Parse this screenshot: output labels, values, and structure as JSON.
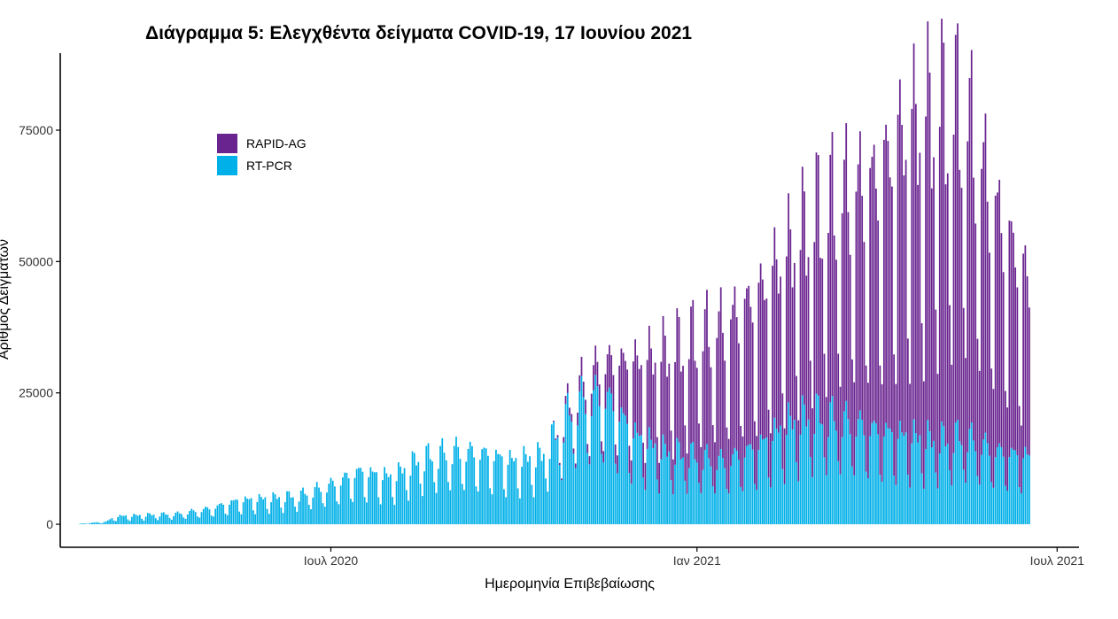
{
  "chart_data": {
    "type": "bar",
    "stacked": true,
    "title": "Διάγραμμα 5: Ελεγχθέντα δείγματα COVID-19, 17 Ιουνίου 2021",
    "xlabel": "Ημερομηνία Επιβεβαίωσης",
    "ylabel": "Αριθμός Δειγμάτων",
    "ylim": [
      0,
      89000
    ],
    "yticks": [
      0,
      25000,
      50000,
      75000
    ],
    "xticks": [
      {
        "date": "2020-07-01",
        "label": "Ιουλ 2020"
      },
      {
        "date": "2021-01-01",
        "label": "Ιαν 2021"
      },
      {
        "date": "2021-07-01",
        "label": "Ιουλ 2021"
      }
    ],
    "xlim": [
      "2020-02-16",
      "2021-07-12"
    ],
    "date_range": [
      "2020-02-26",
      "2021-06-17"
    ],
    "grid": false,
    "legend_position": "top-left",
    "series": [
      {
        "name": "RT-PCR",
        "color": "#00b0e8",
        "anchors": [
          [
            "2020-02-26",
            100
          ],
          [
            "2020-03-10",
            500
          ],
          [
            "2020-03-15",
            1500
          ],
          [
            "2020-04-01",
            1800
          ],
          [
            "2020-04-15",
            2000
          ],
          [
            "2020-05-01",
            3000
          ],
          [
            "2020-05-15",
            4500
          ],
          [
            "2020-06-01",
            5000
          ],
          [
            "2020-06-15",
            5500
          ],
          [
            "2020-07-01",
            7500
          ],
          [
            "2020-07-15",
            10000
          ],
          [
            "2020-08-01",
            9000
          ],
          [
            "2020-08-15",
            12500
          ],
          [
            "2020-09-01",
            14000
          ],
          [
            "2020-09-15",
            13500
          ],
          [
            "2020-10-01",
            12000
          ],
          [
            "2020-10-15",
            13000
          ],
          [
            "2020-11-01",
            23000
          ],
          [
            "2020-11-15",
            25000
          ],
          [
            "2020-12-01",
            17000
          ],
          [
            "2020-12-15",
            14000
          ],
          [
            "2021-01-01",
            13000
          ],
          [
            "2021-01-15",
            12000
          ],
          [
            "2021-02-01",
            15000
          ],
          [
            "2021-02-15",
            19000
          ],
          [
            "2021-03-01",
            21000
          ],
          [
            "2021-03-15",
            20000
          ],
          [
            "2021-04-01",
            18000
          ],
          [
            "2021-04-15",
            17000
          ],
          [
            "2021-05-01",
            16000
          ],
          [
            "2021-05-15",
            17000
          ],
          [
            "2021-06-01",
            14000
          ],
          [
            "2021-06-17",
            13000
          ]
        ]
      },
      {
        "name": "RAPID-AG",
        "color": "#6a2490",
        "anchors": [
          [
            "2020-02-26",
            0
          ],
          [
            "2020-10-20",
            0
          ],
          [
            "2020-11-01",
            2000
          ],
          [
            "2020-11-15",
            5000
          ],
          [
            "2020-12-01",
            12000
          ],
          [
            "2020-12-15",
            16000
          ],
          [
            "2021-01-01",
            20000
          ],
          [
            "2021-01-15",
            23000
          ],
          [
            "2021-02-01",
            25000
          ],
          [
            "2021-02-15",
            28000
          ],
          [
            "2021-03-01",
            33000
          ],
          [
            "2021-03-15",
            38000
          ],
          [
            "2021-04-01",
            42000
          ],
          [
            "2021-04-15",
            50000
          ],
          [
            "2021-05-01",
            55000
          ],
          [
            "2021-05-15",
            55000
          ],
          [
            "2021-06-01",
            40000
          ],
          [
            "2021-06-17",
            28000
          ]
        ]
      }
    ]
  }
}
